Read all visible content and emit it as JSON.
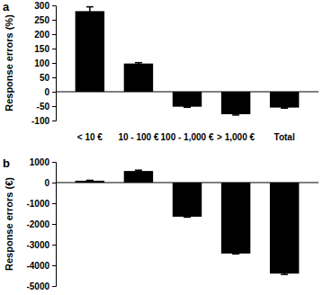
{
  "chart_data": [
    {
      "type": "bar",
      "title": "a",
      "y_label": "Response errors (%)",
      "categories": [
        "< 10 €",
        "10 - 100 €",
        "100 - 1,000 €",
        "> 1,000 €",
        "Total"
      ],
      "values": [
        280,
        98,
        -52,
        -78,
        -55
      ],
      "errors": [
        15,
        3,
        2,
        3,
        2
      ],
      "color": "#000000",
      "ylim": [
        -100,
        300
      ],
      "yticks": [
        -100,
        -50,
        0,
        50,
        100,
        150,
        200,
        250,
        300
      ],
      "grid": false
    },
    {
      "type": "bar",
      "title": "b",
      "y_label": "Response errors (€)",
      "categories": [
        null,
        null,
        null,
        null,
        null
      ],
      "values": [
        90,
        560,
        -1650,
        -3430,
        -4400
      ],
      "errors": [
        20,
        40,
        20,
        20,
        40
      ],
      "color": "#000000",
      "ylim": [
        -5000,
        1000
      ],
      "yticks": [
        -5000,
        -4000,
        -3000,
        -2000,
        -1000,
        0,
        1000
      ],
      "grid": false
    }
  ]
}
